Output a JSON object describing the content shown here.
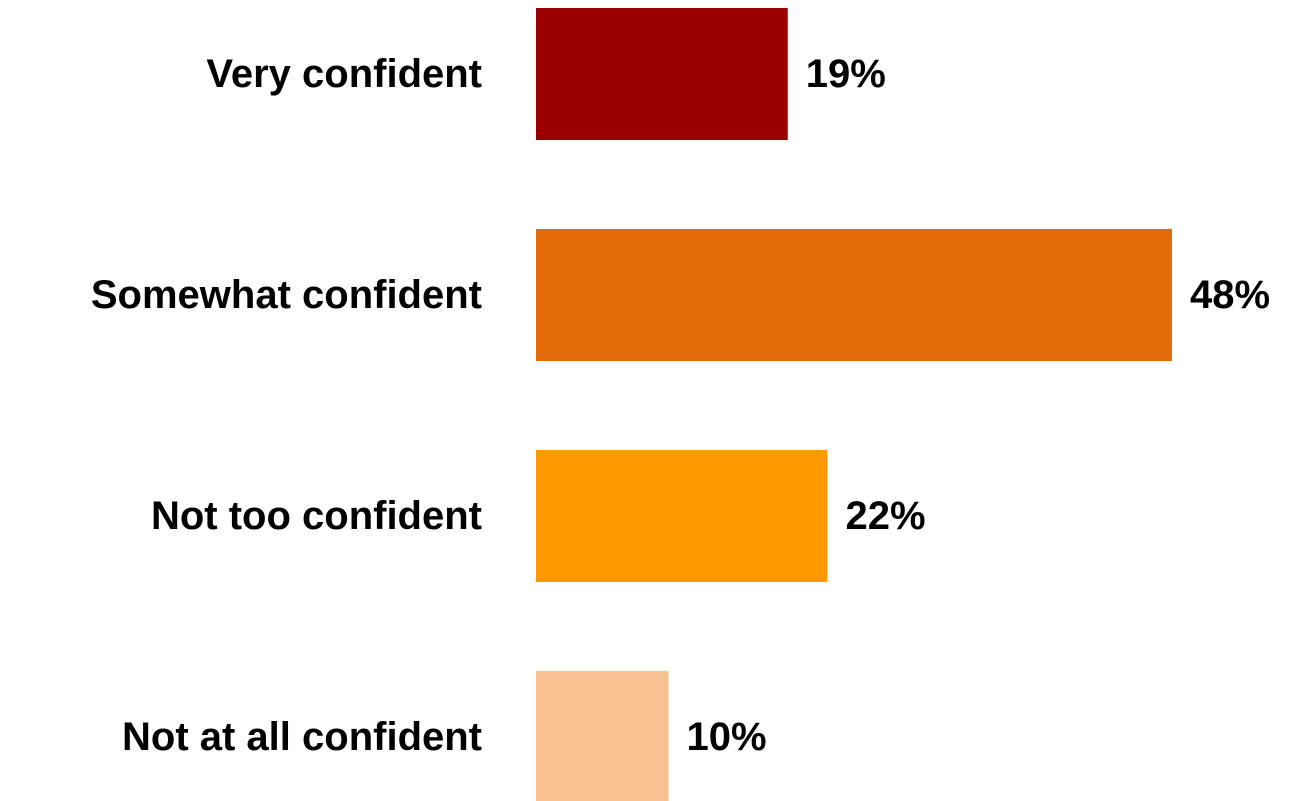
{
  "chart_data": {
    "type": "bar",
    "orientation": "horizontal",
    "categories": [
      "Very confident",
      "Somewhat confident",
      "Not too confident",
      "Not at all confident"
    ],
    "values": [
      19,
      48,
      22,
      10
    ],
    "value_labels": [
      "19%",
      "48%",
      "22%",
      "10%"
    ],
    "colors": [
      "#990000",
      "#E36C0A",
      "#FF9900",
      "#F9C091"
    ],
    "xlim": [
      0,
      48
    ],
    "grid": false,
    "legend": "none"
  }
}
